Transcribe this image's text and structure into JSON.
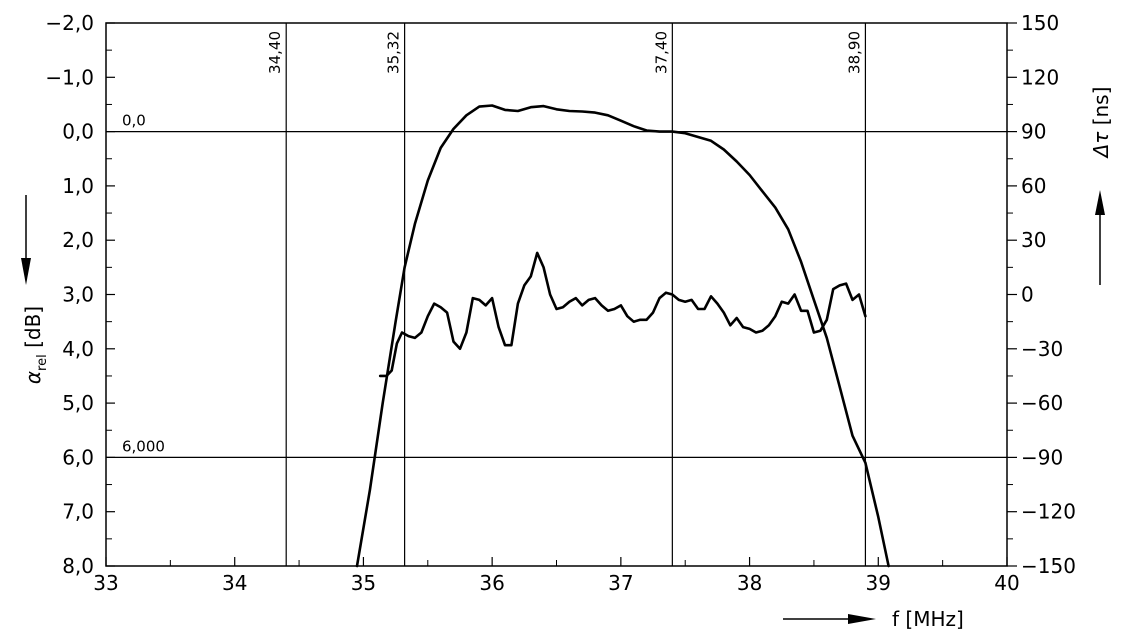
{
  "chart_data": {
    "type": "line",
    "x_axis": {
      "label_symbol": "f",
      "label_unit": "[MHz]",
      "range": [
        33,
        40
      ],
      "ticks": [
        "33",
        "34",
        "35",
        "36",
        "37",
        "38",
        "39",
        "40"
      ]
    },
    "y_left_axis": {
      "label_symbol": "α",
      "label_subscript": "rel",
      "label_unit": "[dB]",
      "range": [
        -2.0,
        8.0
      ],
      "inverted": true,
      "ticks": [
        "−2,0",
        "−1,0",
        "0,0",
        "1,0",
        "2,0",
        "3,0",
        "4,0",
        "5,0",
        "6,0",
        "7,0",
        "8,0"
      ]
    },
    "y_right_axis": {
      "label_symbol": "Δτ",
      "label_unit": "[ns]",
      "range": [
        -150,
        150
      ],
      "ticks": [
        "150",
        "120",
        "90",
        "60",
        "30",
        "0",
        "−30",
        "−60",
        "−90",
        "−120",
        "−150"
      ]
    },
    "reference_lines": [
      {
        "label": "0,0",
        "value": 0.0
      },
      {
        "label": "6,000",
        "value": 6.0
      }
    ],
    "markers": [
      {
        "label": "34,40",
        "x": 34.4
      },
      {
        "label": "35,32",
        "x": 35.32
      },
      {
        "label": "37,40",
        "x": 37.4
      },
      {
        "label": "38,90",
        "x": 38.9
      }
    ],
    "grid": false,
    "series": [
      {
        "axis": "left",
        "points": [
          [
            34.95,
            8.0
          ],
          [
            35.05,
            6.6
          ],
          [
            35.15,
            5.0
          ],
          [
            35.25,
            3.5
          ],
          [
            35.32,
            2.5
          ],
          [
            35.4,
            1.7
          ],
          [
            35.5,
            0.9
          ],
          [
            35.6,
            0.3
          ],
          [
            35.7,
            -0.05
          ],
          [
            35.8,
            -0.3
          ],
          [
            35.9,
            -0.46
          ],
          [
            36.0,
            -0.48
          ],
          [
            36.1,
            -0.4
          ],
          [
            36.2,
            -0.38
          ],
          [
            36.3,
            -0.45
          ],
          [
            36.4,
            -0.47
          ],
          [
            36.5,
            -0.41
          ],
          [
            36.6,
            -0.38
          ],
          [
            36.7,
            -0.37
          ],
          [
            36.8,
            -0.35
          ],
          [
            36.9,
            -0.3
          ],
          [
            37.0,
            -0.2
          ],
          [
            37.1,
            -0.1
          ],
          [
            37.2,
            -0.02
          ],
          [
            37.3,
            0.0
          ],
          [
            37.4,
            0.0
          ],
          [
            37.5,
            0.03
          ],
          [
            37.6,
            0.1
          ],
          [
            37.7,
            0.17
          ],
          [
            37.8,
            0.33
          ],
          [
            37.9,
            0.55
          ],
          [
            38.0,
            0.8
          ],
          [
            38.1,
            1.1
          ],
          [
            38.2,
            1.4
          ],
          [
            38.3,
            1.8
          ],
          [
            38.4,
            2.4
          ],
          [
            38.5,
            3.1
          ],
          [
            38.6,
            3.8
          ],
          [
            38.7,
            4.7
          ],
          [
            38.8,
            5.6
          ],
          [
            38.9,
            6.1
          ],
          [
            39.0,
            7.1
          ],
          [
            39.08,
            8.0
          ]
        ]
      },
      {
        "axis": "right",
        "points": [
          [
            35.13,
            -45
          ],
          [
            35.18,
            -45
          ],
          [
            35.22,
            -42
          ],
          [
            35.26,
            -27
          ],
          [
            35.3,
            -21
          ],
          [
            35.35,
            -23
          ],
          [
            35.4,
            -24
          ],
          [
            35.45,
            -21
          ],
          [
            35.5,
            -12
          ],
          [
            35.55,
            -5
          ],
          [
            35.6,
            -7
          ],
          [
            35.65,
            -10
          ],
          [
            35.7,
            -26
          ],
          [
            35.75,
            -30
          ],
          [
            35.8,
            -21
          ],
          [
            35.85,
            -2
          ],
          [
            35.9,
            -3
          ],
          [
            35.95,
            -6
          ],
          [
            36.0,
            -2
          ],
          [
            36.05,
            -18
          ],
          [
            36.1,
            -28
          ],
          [
            36.15,
            -28
          ],
          [
            36.2,
            -5
          ],
          [
            36.25,
            5
          ],
          [
            36.3,
            10
          ],
          [
            36.35,
            23
          ],
          [
            36.4,
            15
          ],
          [
            36.45,
            0
          ],
          [
            36.5,
            -8
          ],
          [
            36.55,
            -7
          ],
          [
            36.6,
            -4
          ],
          [
            36.65,
            -2
          ],
          [
            36.7,
            -6
          ],
          [
            36.75,
            -3
          ],
          [
            36.8,
            -2
          ],
          [
            36.85,
            -6
          ],
          [
            36.9,
            -9
          ],
          [
            36.95,
            -8
          ],
          [
            37.0,
            -6
          ],
          [
            37.05,
            -12
          ],
          [
            37.1,
            -15
          ],
          [
            37.15,
            -14
          ],
          [
            37.2,
            -14
          ],
          [
            37.25,
            -10
          ],
          [
            37.3,
            -2
          ],
          [
            37.35,
            1
          ],
          [
            37.4,
            0
          ],
          [
            37.45,
            -3
          ],
          [
            37.5,
            -4
          ],
          [
            37.55,
            -3
          ],
          [
            37.6,
            -8
          ],
          [
            37.65,
            -8
          ],
          [
            37.7,
            -1
          ],
          [
            37.75,
            -5
          ],
          [
            37.8,
            -10
          ],
          [
            37.85,
            -17
          ],
          [
            37.9,
            -13
          ],
          [
            37.95,
            -18
          ],
          [
            38.0,
            -19
          ],
          [
            38.05,
            -21
          ],
          [
            38.1,
            -20
          ],
          [
            38.15,
            -17
          ],
          [
            38.2,
            -12
          ],
          [
            38.25,
            -4
          ],
          [
            38.3,
            -5
          ],
          [
            38.35,
            0
          ],
          [
            38.4,
            -9
          ],
          [
            38.45,
            -9
          ],
          [
            38.5,
            -21
          ],
          [
            38.55,
            -20
          ],
          [
            38.6,
            -14
          ],
          [
            38.65,
            3
          ],
          [
            38.7,
            5
          ],
          [
            38.75,
            6
          ],
          [
            38.8,
            -3
          ],
          [
            38.85,
            0
          ],
          [
            38.9,
            -12
          ]
        ]
      }
    ]
  }
}
